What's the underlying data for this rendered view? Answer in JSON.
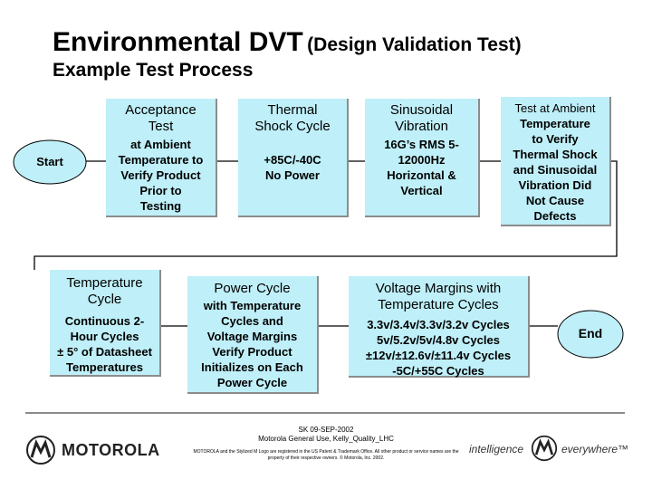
{
  "title": {
    "main": "Environmental DVT",
    "sub": "(Design Validation Test)"
  },
  "subtitle": "Example Test Process",
  "steps": {
    "start": {
      "label": "Start"
    },
    "acceptance": {
      "heading": [
        "Acceptance",
        "Test"
      ],
      "detail": [
        "at Ambient",
        "Temperature to",
        "Verify Product",
        "Prior to",
        "Testing"
      ]
    },
    "thermal_shock": {
      "heading": [
        "Thermal",
        "Shock Cycle"
      ],
      "detail": [
        "+85C/-40C",
        "No Power"
      ]
    },
    "sinusoidal": {
      "heading": [
        "Sinusoidal",
        "Vibration"
      ],
      "detail": [
        "16G’s RMS 5-",
        "12000Hz",
        "Horizontal &",
        "Vertical"
      ]
    },
    "ambient": {
      "heading": [
        "Test at Ambient"
      ],
      "detail": [
        "Temperature",
        "to Verify",
        "Thermal Shock",
        "and Sinusoidal",
        "Vibration Did",
        "Not Cause",
        "Defects"
      ]
    },
    "temperature_cycle": {
      "heading": [
        "Temperature",
        "Cycle"
      ],
      "detail": [
        "Continuous 2-",
        "Hour Cycles",
        "± 5° of Datasheet",
        "Temperatures"
      ]
    },
    "power_cycle": {
      "heading": [
        "Power Cycle"
      ],
      "detail": [
        "with Temperature",
        "Cycles and",
        "Voltage Margins",
        "Verify Product",
        "Initializes on Each",
        "Power Cycle"
      ]
    },
    "voltage_margins": {
      "heading": [
        "Voltage Margins with",
        "Temperature Cycles"
      ],
      "detail": [
        "3.3v/3.4v/3.3v/3.2v Cycles",
        "5v/5.2v/5v/4.8v Cycles",
        "±12v/±12.6v/±11.4v Cycles",
        "-5C/+55C Cycles"
      ]
    },
    "end": {
      "label": "End"
    }
  },
  "footer": {
    "date_line": "SK 09-SEP-2002",
    "owner_line": "Motorola General Use, Kelly_Quality_LHC",
    "legal": "MOTOROLA and the Stylized M Logo are registered in the US Patent & Trademark Office. All other product or service names are the property of their respective owners. © Motorola, Inc. 2002.",
    "brand": "MOTOROLA",
    "tagline_left": "intelligence",
    "tagline_right": "everywhere™"
  },
  "colors": {
    "box_fill": "#bfeff8",
    "box_shadow": "#8c8c8c",
    "connector": "#000000"
  }
}
